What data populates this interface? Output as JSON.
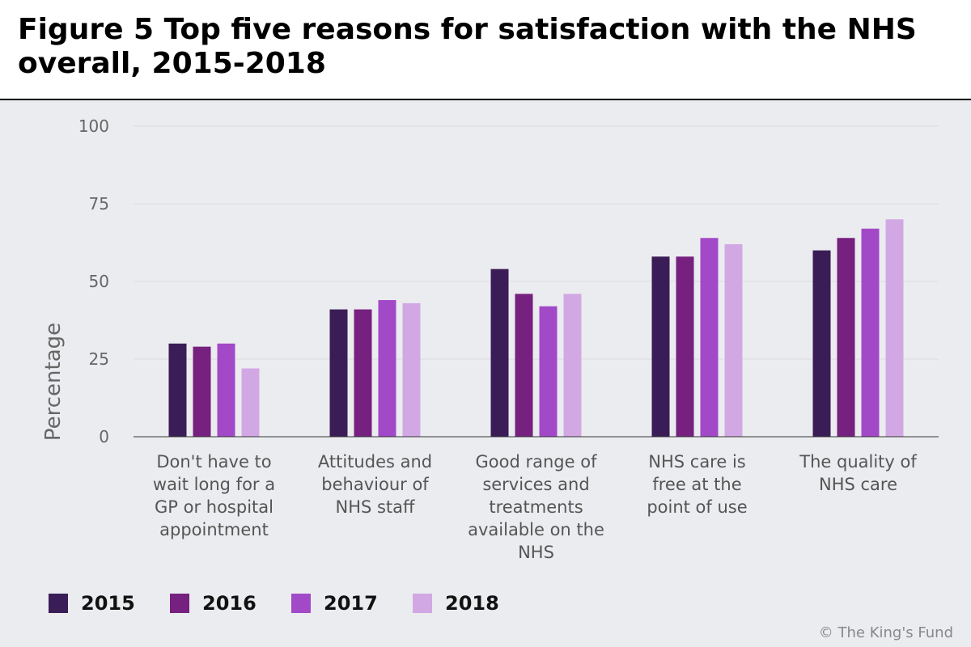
{
  "title": "Figure 5 Top five reasons for satisfaction with the NHS overall, 2015-2018",
  "credit": "© The King's Fund",
  "chart_data": {
    "type": "bar",
    "ylabel": "Percentage",
    "ylim": [
      0,
      100
    ],
    "yticks": [
      "0",
      "25",
      "50",
      "75",
      "100"
    ],
    "grid": true,
    "legend_position": "bottom-left",
    "categories": [
      [
        "Don't have to",
        "wait long for a",
        "GP or hospital",
        "appointment"
      ],
      [
        "Attitudes and",
        "behaviour of",
        "NHS staff"
      ],
      [
        "Good range of",
        "services and",
        "treatments",
        "available on the",
        "NHS"
      ],
      [
        "NHS care is",
        "free at the",
        "point of use"
      ],
      [
        "The quality of",
        "NHS care"
      ]
    ],
    "series": [
      {
        "name": "2015",
        "color": "#3a1d57",
        "values": [
          30,
          41,
          54,
          58,
          60
        ]
      },
      {
        "name": "2016",
        "color": "#76207f",
        "values": [
          29,
          41,
          46,
          58,
          64
        ]
      },
      {
        "name": "2017",
        "color": "#a249c8",
        "values": [
          30,
          44,
          42,
          64,
          67
        ]
      },
      {
        "name": "2018",
        "color": "#d2a8e4",
        "values": [
          22,
          43,
          46,
          62,
          70
        ]
      }
    ]
  }
}
